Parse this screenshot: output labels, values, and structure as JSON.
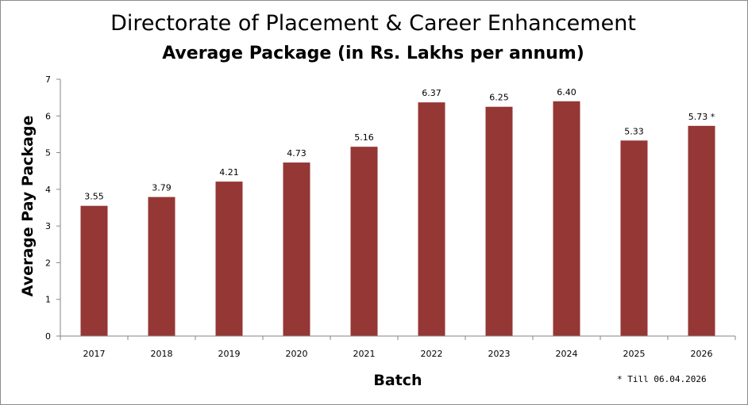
{
  "title": "Directorate of Placement & Career Enhancement",
  "footnote": "* Till 06.04.2026",
  "colors": {
    "bar": "#953735",
    "axis": "#868686",
    "text": "#000000"
  },
  "chart_data": {
    "type": "bar",
    "title": "Average Package (in Rs. Lakhs per annum)",
    "xlabel": "Batch",
    "ylabel": "Average Pay Package",
    "categories": [
      "2017",
      "2018",
      "2019",
      "2020",
      "2021",
      "2022",
      "2023",
      "2024",
      "2025",
      "2026"
    ],
    "values": [
      3.55,
      3.79,
      4.21,
      4.73,
      5.16,
      6.37,
      6.25,
      6.4,
      5.33,
      5.73
    ],
    "data_labels": [
      "3.55",
      "3.79",
      "4.21",
      "4.73",
      "5.16",
      "6.37",
      "6.25",
      "6.40",
      "5.33",
      "5.73 *"
    ],
    "ylim": [
      0,
      7
    ],
    "yticks": [
      "0",
      "1",
      "2",
      "3",
      "4",
      "5",
      "6",
      "7"
    ],
    "grid": false,
    "legend": "none"
  }
}
